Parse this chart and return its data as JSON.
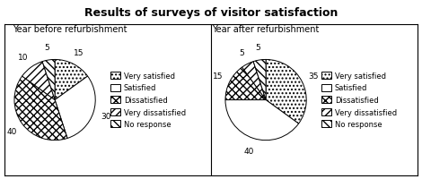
{
  "title": "Results of surveys of visitor satisfaction",
  "chart1_title": "Year before refurbishment",
  "chart2_title": "Year after refurbishment",
  "labels": [
    "Very satisfied",
    "Satisfied",
    "Dissatisfied",
    "Very dissatisfied",
    "No response"
  ],
  "values1": [
    15,
    30,
    40,
    10,
    5
  ],
  "values2": [
    35,
    40,
    15,
    5,
    5
  ],
  "hatch_map": [
    "....",
    "====",
    "xxxx",
    "////",
    "\\\\\\\\"
  ],
  "title_fontsize": 9,
  "subtitle_fontsize": 7,
  "label_fontsize": 6.5,
  "legend_fontsize": 6,
  "figsize": [
    4.7,
    2.01
  ],
  "dpi": 100
}
